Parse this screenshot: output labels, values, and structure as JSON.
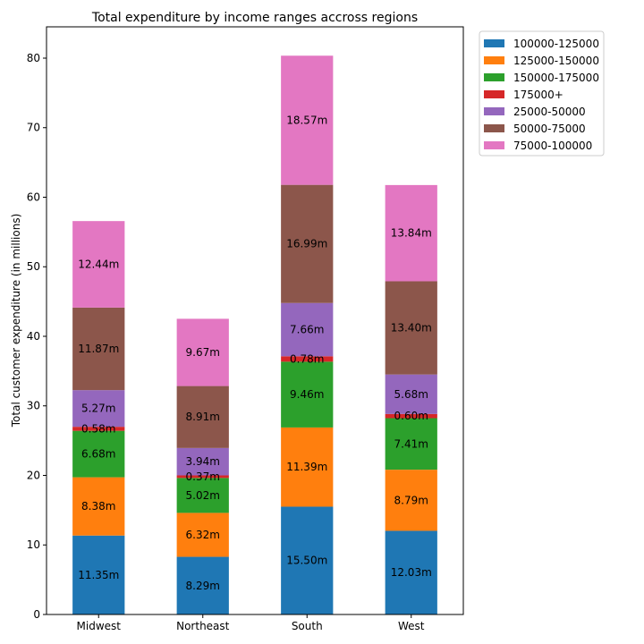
{
  "chart_data": {
    "type": "bar",
    "stacked": true,
    "title": "Total expenditure by income ranges accross regions",
    "xlabel": "",
    "ylabel": "Total customer expenditure (in millions)",
    "ylim": [
      0,
      84.5
    ],
    "yticks": [
      0,
      10,
      20,
      30,
      40,
      50,
      60,
      70,
      80
    ],
    "grid": false,
    "legend_position": "outside-top-right",
    "categories": [
      "Midwest",
      "Northeast",
      "South",
      "West"
    ],
    "series": [
      {
        "name": "100000-125000",
        "color": "#1f77b4",
        "values": [
          11.35,
          8.29,
          15.5,
          12.03
        ],
        "labels": [
          "11.35m",
          "8.29m",
          "15.50m",
          "12.03m"
        ]
      },
      {
        "name": "125000-150000",
        "color": "#ff7f0e",
        "values": [
          8.38,
          6.32,
          11.39,
          8.79
        ],
        "labels": [
          "8.38m",
          "6.32m",
          "11.39m",
          "8.79m"
        ]
      },
      {
        "name": "150000-175000",
        "color": "#2ca02c",
        "values": [
          6.68,
          5.02,
          9.46,
          7.41
        ],
        "labels": [
          "6.68m",
          "5.02m",
          "9.46m",
          "7.41m"
        ]
      },
      {
        "name": "175000+",
        "color": "#d62728",
        "values": [
          0.58,
          0.37,
          0.78,
          0.6
        ],
        "labels": [
          "0.58m",
          "0.37m",
          "0.78m",
          "0.60m"
        ]
      },
      {
        "name": "25000-50000",
        "color": "#9467bd",
        "values": [
          5.27,
          3.94,
          7.66,
          5.68
        ],
        "labels": [
          "5.27m",
          "3.94m",
          "7.66m",
          "5.68m"
        ]
      },
      {
        "name": "50000-75000",
        "color": "#8c564b",
        "values": [
          11.87,
          8.91,
          16.99,
          13.4
        ],
        "labels": [
          "11.87m",
          "8.91m",
          "16.99m",
          "13.40m"
        ]
      },
      {
        "name": "75000-100000",
        "color": "#e377c2",
        "values": [
          12.44,
          9.67,
          18.57,
          13.84
        ],
        "labels": [
          "12.44m",
          "9.67m",
          "18.57m",
          "13.84m"
        ]
      }
    ]
  }
}
